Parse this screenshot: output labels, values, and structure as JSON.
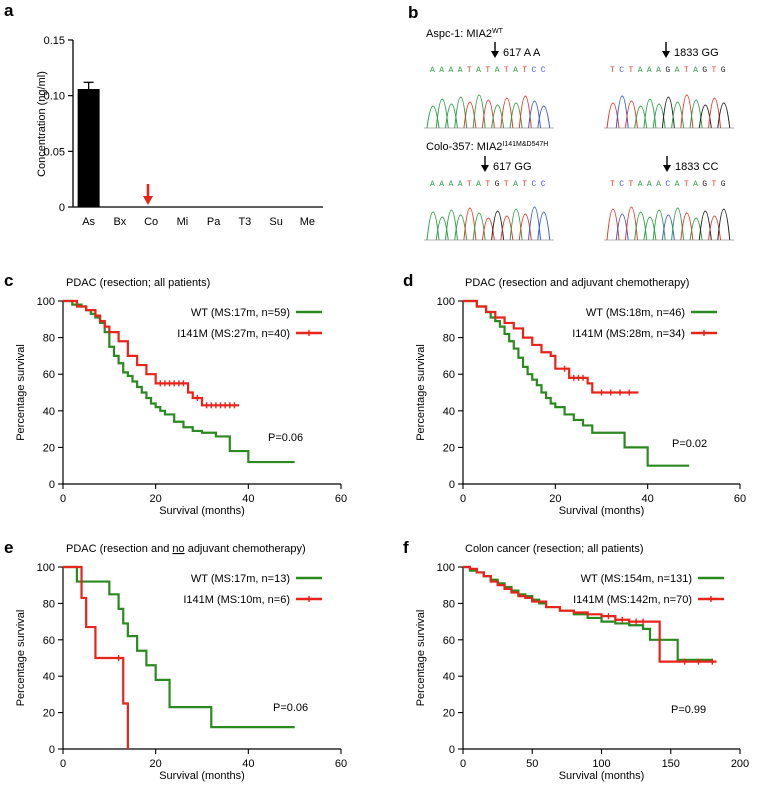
{
  "colors": {
    "wt": "#2a8a1f",
    "mut": "#e8231a",
    "bar": "#000000",
    "arrow": "#e8231a",
    "base_A": "#2fa24a",
    "base_T": "#e63b2e",
    "base_C": "#3b5bd9",
    "base_G": "#222222"
  },
  "panel_a": {
    "letter": "a",
    "chart_data": {
      "type": "bar",
      "categories": [
        "As",
        "Bx",
        "Co",
        "Mi",
        "Pa",
        "T3",
        "Su",
        "Me"
      ],
      "values": [
        0.106,
        0,
        0,
        0,
        0,
        0,
        0,
        0
      ],
      "error": [
        0.006,
        0,
        0,
        0,
        0,
        0,
        0,
        0
      ],
      "ylabel": "Concentration (ng/ml)",
      "ylim": [
        0,
        0.15
      ],
      "yticks": [
        "0",
        "0.05",
        "0.10",
        "0.15"
      ],
      "highlight_category": "Co"
    }
  },
  "panel_b": {
    "letter": "b",
    "wt_label": "Aspc-1: MIA2",
    "wt_sup": "WT",
    "mut_label": "Colo-357: MIA2",
    "mut_sup": "I141M&D547H",
    "traces": [
      {
        "marker": "617 A A",
        "seq": "AAAATATATATCC"
      },
      {
        "marker": "1833 GG",
        "seq": "TCTAAAGATAGTG"
      },
      {
        "marker": "617 GG",
        "seq": "AAAATATGTATCC"
      },
      {
        "marker": "1833 CC",
        "seq": "TCTAAACATAGTG"
      }
    ]
  },
  "panels_km": [
    {
      "letter": "c",
      "title": "PDAC (resection; all patients)",
      "chart_data": {
        "type": "line",
        "xlabel": "Survival (months)",
        "ylabel": "Percentage survival",
        "xlim": [
          0,
          60
        ],
        "ylim": [
          0,
          100
        ],
        "xticks": [
          0,
          20,
          40,
          60
        ],
        "yticks": [
          0,
          20,
          40,
          60,
          80,
          100
        ],
        "series": [
          {
            "name": "WT (MS:17m, n=59)",
            "color": "wt",
            "x": [
              0,
              2,
              4,
              5,
              6,
              7,
              8,
              9,
              10,
              11,
              12,
              13,
              14,
              15,
              16,
              17,
              18,
              19,
              20,
              21,
              22,
              24,
              26,
              28,
              30,
              33,
              36,
              40,
              50
            ],
            "y": [
              100,
              98,
              97,
              95,
              93,
              91,
              88,
              83,
              75,
              70,
              66,
              61,
              59,
              56,
              53,
              50,
              47,
              44,
              42,
              40,
              38,
              34,
              31,
              29,
              28,
              26,
              18,
              12,
              12
            ]
          },
          {
            "name": "I141M (MS:27m, n=40)",
            "color": "mut",
            "x": [
              0,
              3,
              5,
              7,
              8,
              9,
              10,
              12,
              14,
              16,
              18,
              20,
              27,
              28,
              30,
              38
            ],
            "y": [
              100,
              97,
              95,
              92,
              89,
              86,
              83,
              78,
              70,
              65,
              60,
              55,
              50,
              47,
              43,
              43
            ],
            "censored_x": [
              21,
              22,
              23,
              24,
              25,
              26,
              29,
              31,
              32,
              33,
              34,
              35,
              36,
              37
            ]
          }
        ],
        "pvalue": "P=0.06"
      }
    },
    {
      "letter": "d",
      "title": "PDAC (resection and adjuvant chemotherapy)",
      "chart_data": {
        "type": "line",
        "xlabel": "Survival (months)",
        "ylabel": "Percentage survival",
        "xlim": [
          0,
          60
        ],
        "ylim": [
          0,
          100
        ],
        "xticks": [
          0,
          20,
          40,
          60
        ],
        "yticks": [
          0,
          20,
          40,
          60,
          80,
          100
        ],
        "series": [
          {
            "name": "WT (MS:18m, n=46)",
            "color": "wt",
            "x": [
              0,
              3,
              5,
              6,
              7,
              8,
              9,
              10,
              11,
              12,
              13,
              14,
              15,
              16,
              17,
              18,
              19,
              20,
              22,
              24,
              26,
              28,
              30,
              35,
              40,
              49
            ],
            "y": [
              100,
              97,
              94,
              91,
              89,
              86,
              82,
              78,
              74,
              69,
              64,
              60,
              57,
              54,
              50,
              47,
              44,
              42,
              38,
              35,
              32,
              28,
              28,
              20,
              10,
              10
            ]
          },
          {
            "name": "I141M (MS:28m, n=34)",
            "color": "mut",
            "x": [
              0,
              3,
              5,
              7,
              9,
              11,
              13,
              15,
              17,
              19,
              20,
              23,
              27,
              28,
              38
            ],
            "y": [
              100,
              97,
              94,
              91,
              88,
              85,
              80,
              76,
              72,
              70,
              63,
              58,
              55,
              50,
              50
            ],
            "censored_x": [
              22,
              24,
              25,
              26,
              30,
              32,
              34,
              36
            ]
          }
        ],
        "pvalue": "P=0.02"
      }
    },
    {
      "letter": "e",
      "title_before": "PDAC (resection and ",
      "title_underlined": "no",
      "title_after": " adjuvant chemotherapy)",
      "chart_data": {
        "type": "line",
        "xlabel": "Survival (months)",
        "ylabel": "Percentage survival",
        "xlim": [
          0,
          60
        ],
        "ylim": [
          0,
          100
        ],
        "xticks": [
          0,
          20,
          40,
          60
        ],
        "yticks": [
          0,
          20,
          40,
          60,
          80,
          100
        ],
        "series": [
          {
            "name": "WT (MS:17m, n=13)",
            "color": "wt",
            "x": [
              0,
              3,
              10,
              12,
              13,
              14,
              16,
              18,
              20,
              23,
              32,
              50
            ],
            "y": [
              100,
              92,
              85,
              77,
              69,
              62,
              54,
              46,
              38,
              23,
              12,
              12
            ]
          },
          {
            "name": "I141M (MS:10m, n=6)",
            "color": "mut",
            "x": [
              0,
              4,
              5,
              7,
              12,
              13,
              14
            ],
            "y": [
              100,
              83,
              67,
              50,
              50,
              25,
              0
            ],
            "censored_x": [
              12
            ]
          }
        ],
        "pvalue": "P=0.06"
      }
    },
    {
      "letter": "f",
      "title": "Colon cancer (resection; all patients)",
      "chart_data": {
        "type": "line",
        "xlabel": "Survival (months)",
        "ylabel": "Percentage survival",
        "xlim": [
          0,
          200
        ],
        "ylim": [
          0,
          100
        ],
        "xticks": [
          0,
          50,
          100,
          150,
          200
        ],
        "yticks": [
          0,
          20,
          40,
          60,
          80,
          100
        ],
        "series": [
          {
            "name": "WT (MS:154m, n=131)",
            "color": "wt",
            "x": [
              0,
              5,
              10,
              15,
              20,
              25,
              30,
              35,
              40,
              45,
              50,
              55,
              60,
              70,
              80,
              90,
              100,
              110,
              120,
              130,
              135,
              150,
              155,
              180
            ],
            "y": [
              100,
              98,
              97,
              95,
              93,
              91,
              89,
              87,
              85,
              84,
              82,
              80,
              78,
              76,
              74,
              72,
              70,
              69,
              68,
              66,
              60,
              60,
              49,
              49
            ]
          },
          {
            "name": "I141M (MS:142m, n=70)",
            "color": "mut",
            "x": [
              0,
              5,
              10,
              15,
              20,
              25,
              30,
              35,
              40,
              45,
              50,
              60,
              70,
              80,
              90,
              100,
              110,
              120,
              135,
              142,
              183
            ],
            "y": [
              100,
              99,
              97,
              95,
              92,
              90,
              88,
              86,
              84,
              83,
              81,
              78,
              76,
              75,
              74,
              73,
              71,
              70,
              70,
              48,
              48
            ],
            "censored_x": [
              105,
              115,
              125,
              130,
              160,
              170,
              180
            ]
          }
        ],
        "pvalue": "P=0.99"
      }
    }
  ]
}
